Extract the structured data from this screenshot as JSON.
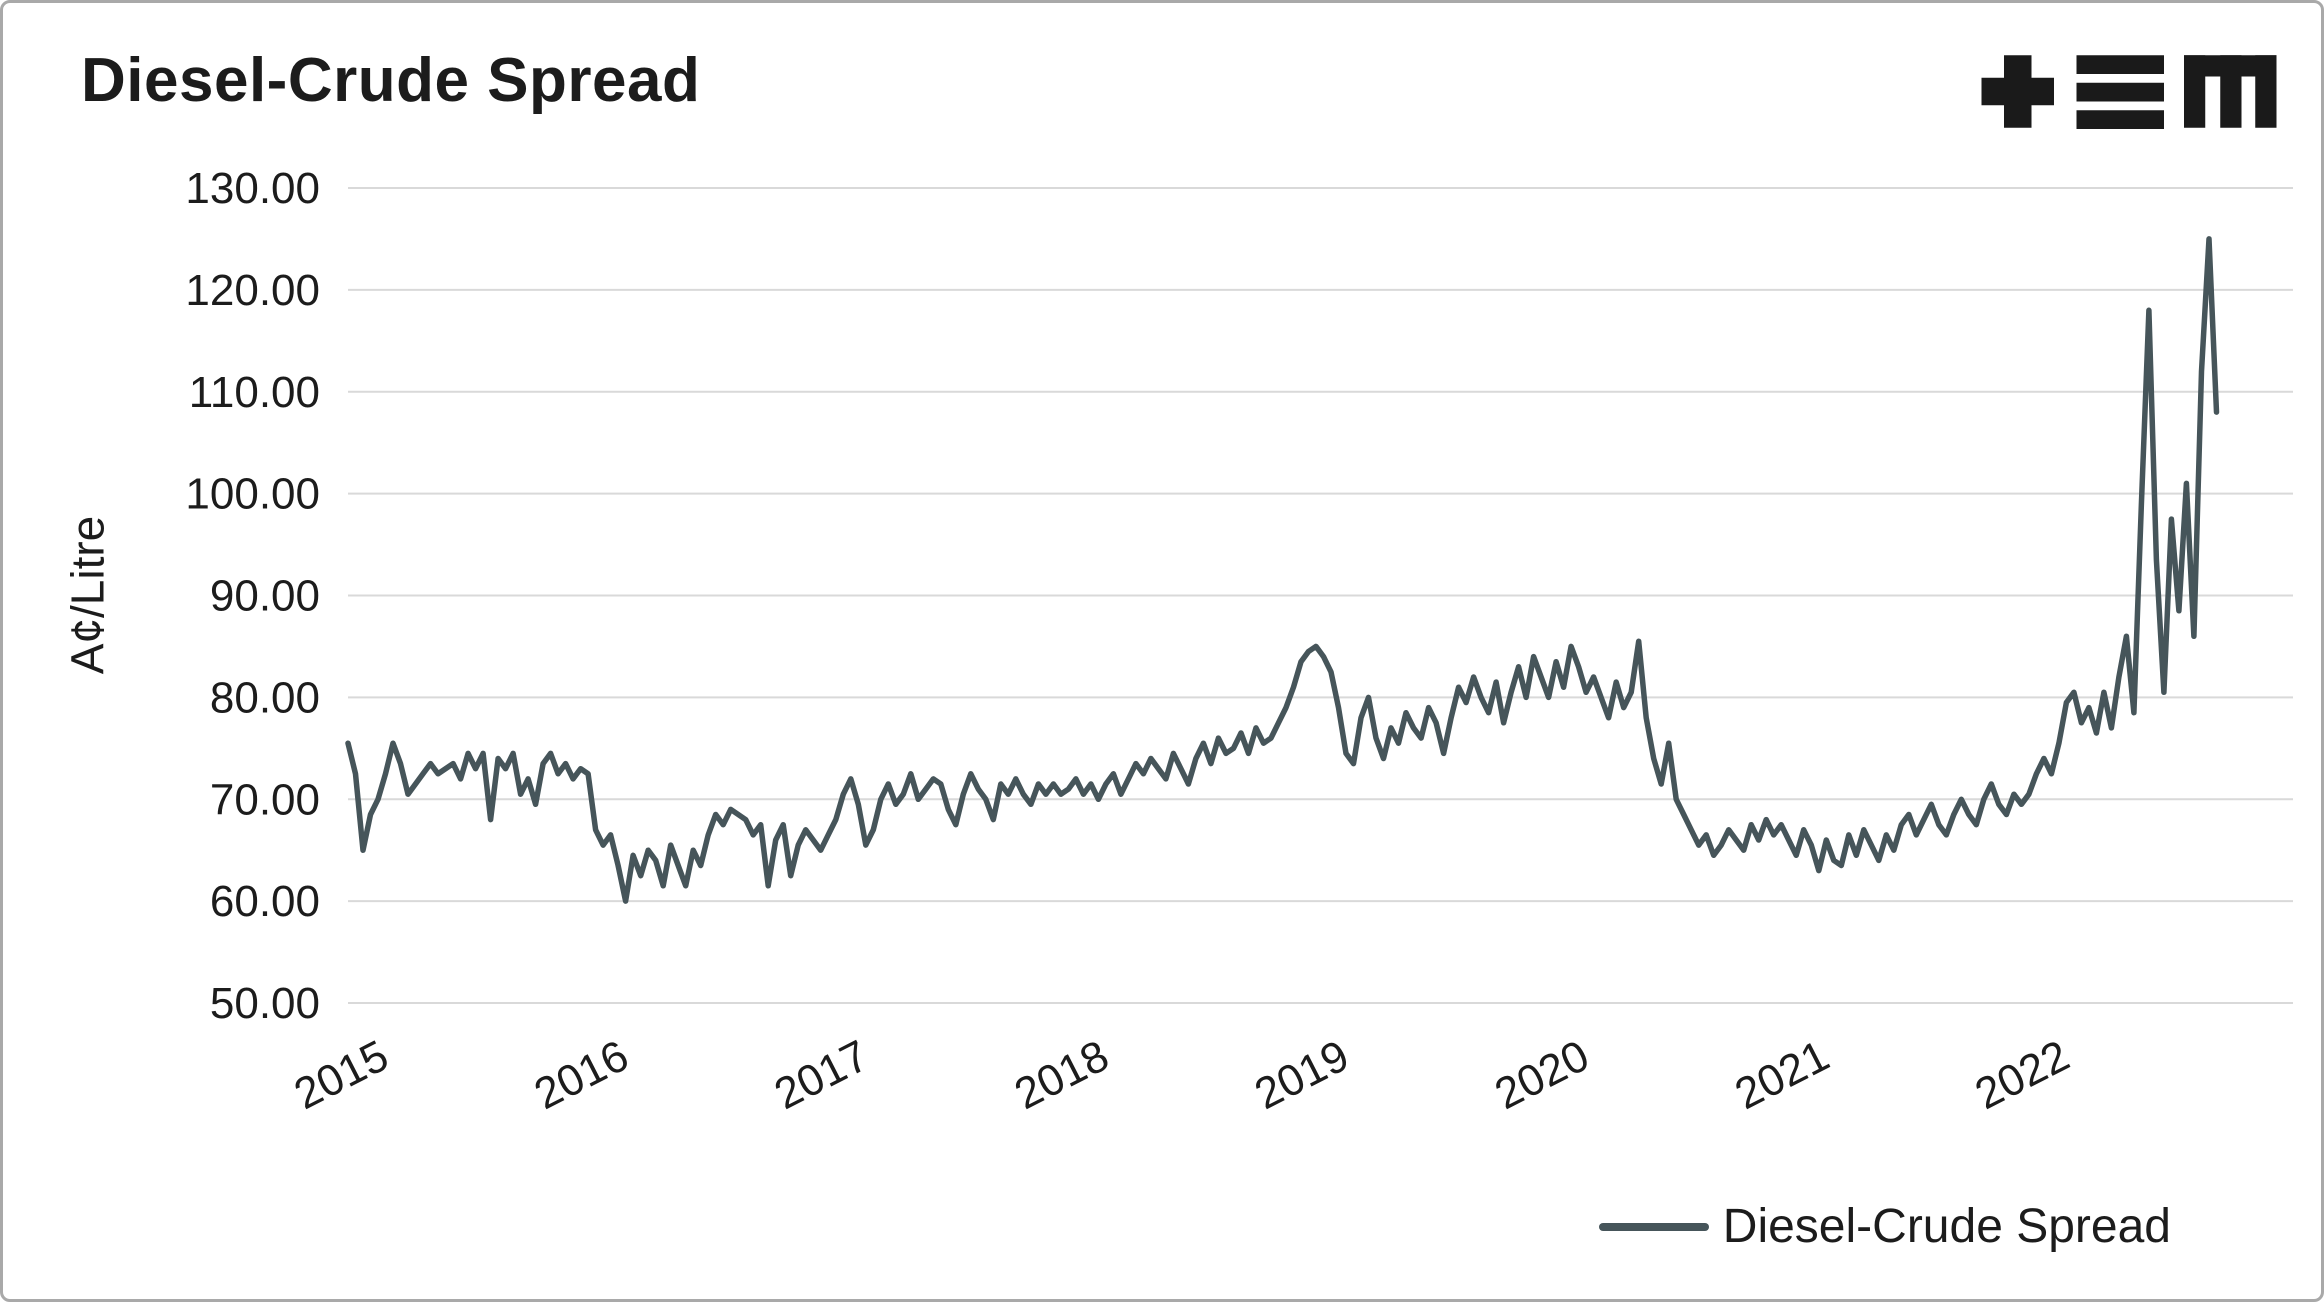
{
  "page": {
    "background": "#ffffff",
    "border_color": "#a9a9a9"
  },
  "header": {
    "title": "Diesel-Crude Spread",
    "logo": {
      "name": "tem-logo",
      "color": "#1a1a1a",
      "glyphs": [
        "plus",
        "triple-bar",
        "m"
      ]
    }
  },
  "chart_data": {
    "type": "line",
    "title": "Diesel-Crude Spread",
    "xlabel": "",
    "ylabel": "A¢/Litre",
    "ylim": [
      50,
      130
    ],
    "ytick_step": 10,
    "ytick_decimals": 2,
    "x_ticks": [
      2015,
      2016,
      2017,
      2018,
      2019,
      2020,
      2021,
      2022
    ],
    "x_domain": [
      2015,
      2023.1
    ],
    "x_start": 2015.0,
    "x_step": 0.03125,
    "grid": "horizontal",
    "gridline_color": "#d9d9d9",
    "line_color": "#46555a",
    "legend": {
      "position": "bottom-right",
      "entries": [
        {
          "label": "Diesel-Crude Spread",
          "color": "#46555a"
        }
      ]
    },
    "values": [
      75.5,
      72.5,
      65.0,
      68.5,
      70.0,
      72.5,
      75.5,
      73.5,
      70.5,
      71.5,
      72.5,
      73.5,
      72.5,
      73.0,
      73.5,
      72.0,
      74.5,
      73.0,
      74.5,
      68.0,
      74.0,
      73.0,
      74.5,
      70.5,
      72.0,
      69.5,
      73.5,
      74.5,
      72.5,
      73.5,
      72.0,
      73.0,
      72.5,
      67.0,
      65.5,
      66.5,
      63.5,
      60.0,
      64.5,
      62.5,
      65.0,
      64.0,
      61.5,
      65.5,
      63.5,
      61.5,
      65.0,
      63.5,
      66.5,
      68.5,
      67.5,
      69.0,
      68.5,
      68.0,
      66.5,
      67.5,
      61.5,
      66.0,
      67.5,
      62.5,
      65.5,
      67.0,
      66.0,
      65.0,
      66.5,
      68.0,
      70.5,
      72.0,
      69.5,
      65.5,
      67.0,
      70.0,
      71.5,
      69.5,
      70.5,
      72.5,
      70.0,
      71.0,
      72.0,
      71.5,
      69.0,
      67.5,
      70.5,
      72.5,
      71.0,
      70.0,
      68.0,
      71.5,
      70.5,
      72.0,
      70.5,
      69.5,
      71.5,
      70.5,
      71.5,
      70.5,
      71.0,
      72.0,
      70.5,
      71.5,
      70.0,
      71.5,
      72.5,
      70.5,
      72.0,
      73.5,
      72.5,
      74.0,
      73.0,
      72.0,
      74.5,
      73.0,
      71.5,
      74.0,
      75.5,
      73.5,
      76.0,
      74.5,
      75.0,
      76.5,
      74.5,
      77.0,
      75.5,
      76.0,
      77.5,
      79.0,
      81.0,
      83.5,
      84.5,
      85.0,
      84.0,
      82.5,
      79.0,
      74.5,
      73.5,
      78.0,
      80.0,
      76.0,
      74.0,
      77.0,
      75.5,
      78.5,
      77.0,
      76.0,
      79.0,
      77.5,
      74.5,
      78.0,
      81.0,
      79.5,
      82.0,
      80.0,
      78.5,
      81.5,
      77.5,
      80.5,
      83.0,
      80.0,
      84.0,
      82.0,
      80.0,
      83.5,
      81.0,
      85.0,
      83.0,
      80.5,
      82.0,
      80.0,
      78.0,
      81.5,
      79.0,
      80.5,
      85.5,
      78.0,
      74.0,
      71.5,
      75.5,
      70.0,
      68.5,
      67.0,
      65.5,
      66.5,
      64.5,
      65.5,
      67.0,
      66.0,
      65.0,
      67.5,
      66.0,
      68.0,
      66.5,
      67.5,
      66.0,
      64.5,
      67.0,
      65.5,
      63.0,
      66.0,
      64.0,
      63.5,
      66.5,
      64.5,
      67.0,
      65.5,
      64.0,
      66.5,
      65.0,
      67.5,
      68.5,
      66.5,
      68.0,
      69.5,
      67.5,
      66.5,
      68.5,
      70.0,
      68.5,
      67.5,
      70.0,
      71.5,
      69.5,
      68.5,
      70.5,
      69.5,
      70.5,
      72.5,
      74.0,
      72.5,
      75.5,
      79.5,
      80.5,
      77.5,
      79.0,
      76.5,
      80.5,
      77.0,
      82.0,
      86.0,
      78.5,
      99.0,
      118.0,
      93.5,
      80.5,
      97.5,
      88.5,
      101.0,
      86.0,
      112.0,
      125.0,
      108.0
    ]
  }
}
